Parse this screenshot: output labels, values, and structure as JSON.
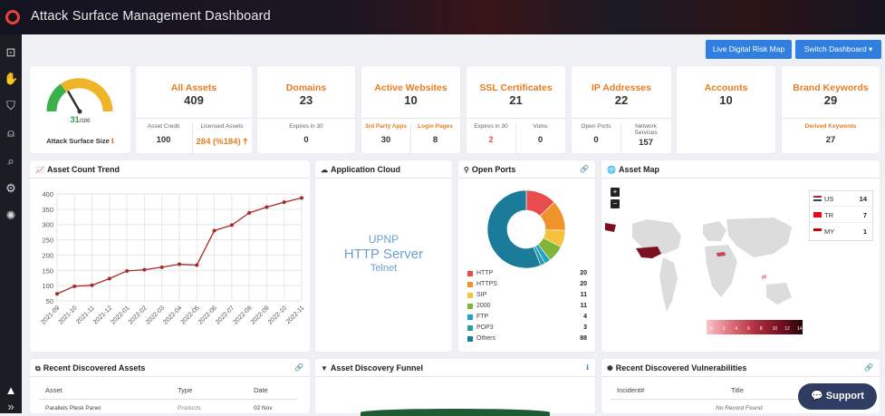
{
  "app": {
    "title": "Attack Surface Management Dashboard"
  },
  "sidebar": {
    "icons": [
      "scan-icon",
      "hand-icon",
      "shield-icon",
      "alert-bell-icon",
      "search-icon",
      "gears-icon",
      "bug-icon",
      "warning-icon",
      "expand-icon"
    ]
  },
  "header_buttons": {
    "live_map": "Live Digital Risk Map",
    "switch_dashboard": "Switch Dashboard ▾"
  },
  "gauge": {
    "value": "31",
    "max": "/100",
    "label": "Attack Surface Size",
    "info": "ℹ",
    "level": 0.31
  },
  "kpis": {
    "all_assets": {
      "title": "All Assets",
      "value": "409",
      "sub1_label": "Asset Credit",
      "sub1_value": "100",
      "sub2_label": "Licensed Assets",
      "sub2_value": "284 (%184) 🠅"
    },
    "domains": {
      "title": "Domains",
      "value": "23",
      "sub1_label": "Expires in 30",
      "sub1_value": "0"
    },
    "websites": {
      "title": "Active Websites",
      "value": "10",
      "sub1_label": "3rd Party Apps",
      "sub1_value": "30",
      "sub2_label": "Login Pages",
      "sub2_value": "8"
    },
    "ssl": {
      "title": "SSL Certificates",
      "value": "21",
      "sub1_label": "Expires in 30",
      "sub1_value": "2",
      "sub2_label": "Vulns",
      "sub2_value": "0"
    },
    "ip": {
      "title": "IP Addresses",
      "value": "22",
      "sub1_label": "Open Ports",
      "sub1_value": "0",
      "sub2_label": "Network Services",
      "sub2_value": "157"
    },
    "accounts": {
      "title": "Accounts",
      "value": "10"
    },
    "brand": {
      "title": "Brand Keywords",
      "value": "29",
      "sub1_label": "Derived Keywords",
      "sub1_value": "27"
    }
  },
  "panels": {
    "trend": "Asset Count Trend",
    "cloud": "Application Cloud",
    "ports": "Open Ports",
    "map": "Asset Map",
    "recent_assets": "Recent Discovered Assets",
    "funnel": "Asset Discovery Funnel",
    "vulns": "Recent Discovered Vulnerabilities"
  },
  "cloud_words": [
    "UPNP",
    "HTTP Server",
    "Telnet"
  ],
  "chart_data": [
    {
      "type": "line",
      "title": "Asset Count Trend",
      "x": [
        "2021-09",
        "2021-10",
        "2021-11",
        "2021-12",
        "2022-01",
        "2022-02",
        "2022-03",
        "2022-04",
        "2022-05",
        "2022-06",
        "2022-07",
        "2022-08",
        "2022-09",
        "2022-10",
        "2022-11"
      ],
      "y": [
        73,
        98,
        101,
        123,
        148,
        152,
        160,
        170,
        167,
        280,
        298,
        338,
        357,
        373,
        387
      ],
      "ylim": [
        50,
        400
      ],
      "yticks": [
        50,
        100,
        150,
        200,
        250,
        300,
        350,
        400
      ],
      "color": "#a52a2a",
      "grid": true
    },
    {
      "type": "pie",
      "title": "Open Ports",
      "categories": [
        "HTTP",
        "HTTPS",
        "SIP",
        "2000",
        "FTP",
        "POP3",
        "Others"
      ],
      "values": [
        20,
        20,
        11,
        11,
        4,
        3,
        88
      ],
      "colors": [
        "#e84c4c",
        "#f0932b",
        "#f6c23e",
        "#7fb539",
        "#1fa3c9",
        "#2b9ba8",
        "#1b7c99"
      ]
    }
  ],
  "map": {
    "rows": [
      {
        "country": "US",
        "count": "14"
      },
      {
        "country": "TR",
        "count": "7"
      },
      {
        "country": "MY",
        "count": "1"
      }
    ],
    "scale": [
      "0",
      "2",
      "4",
      "6",
      "8",
      "10",
      "12",
      "14"
    ],
    "zoom_in": "+",
    "zoom_out": "−"
  },
  "recent_assets": {
    "headers": [
      "Asset",
      "Type",
      "Date"
    ],
    "row": [
      "Parallels Plesk Panel",
      "Products",
      "02 Nov"
    ]
  },
  "vulns": {
    "headers": [
      "Incident#",
      "Title"
    ],
    "empty": "No Record Found"
  },
  "support": {
    "label": "Support"
  }
}
